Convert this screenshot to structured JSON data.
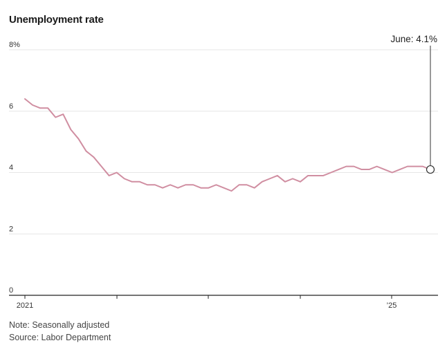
{
  "chart_data": {
    "type": "line",
    "title": "Unemployment rate",
    "ylim": [
      0,
      8
    ],
    "y_ticks": [
      0,
      2,
      4,
      6,
      8
    ],
    "y_tick_labels": [
      "0",
      "2",
      "4",
      "6",
      "8%"
    ],
    "x_tick_labels": [
      "2021",
      "",
      "",
      "",
      "’25"
    ],
    "grid": true,
    "series": [
      {
        "color": "#d08ea1",
        "x": [
          "2021-01",
          "2021-02",
          "2021-03",
          "2021-04",
          "2021-05",
          "2021-06",
          "2021-07",
          "2021-08",
          "2021-09",
          "2021-10",
          "2021-11",
          "2021-12",
          "2022-01",
          "2022-02",
          "2022-03",
          "2022-04",
          "2022-05",
          "2022-06",
          "2022-07",
          "2022-08",
          "2022-09",
          "2022-10",
          "2022-11",
          "2022-12",
          "2023-01",
          "2023-02",
          "2023-03",
          "2023-04",
          "2023-05",
          "2023-06",
          "2023-07",
          "2023-08",
          "2023-09",
          "2023-10",
          "2023-11",
          "2023-12",
          "2024-01",
          "2024-02",
          "2024-03",
          "2024-04",
          "2024-05",
          "2024-06",
          "2024-07",
          "2024-08",
          "2024-09",
          "2024-10",
          "2024-11",
          "2024-12",
          "2025-01",
          "2025-02",
          "2025-03",
          "2025-04",
          "2025-05",
          "2025-06"
        ],
        "values": [
          6.4,
          6.2,
          6.1,
          6.1,
          5.8,
          5.9,
          5.4,
          5.1,
          4.7,
          4.5,
          4.2,
          3.9,
          4.0,
          3.8,
          3.7,
          3.7,
          3.6,
          3.6,
          3.5,
          3.6,
          3.5,
          3.6,
          3.6,
          3.5,
          3.5,
          3.6,
          3.5,
          3.4,
          3.6,
          3.6,
          3.5,
          3.7,
          3.8,
          3.9,
          3.7,
          3.8,
          3.7,
          3.9,
          3.9,
          3.9,
          4.0,
          4.1,
          4.2,
          4.2,
          4.1,
          4.1,
          4.2,
          4.1,
          4.0,
          4.1,
          4.2,
          4.2,
          4.2,
          4.1
        ]
      }
    ],
    "annotation": {
      "label": "June: 4.1%"
    }
  },
  "notes": {
    "note": "Note: Seasonally adjusted",
    "source": "Source: Labor Department"
  },
  "colors": {
    "line": "#d08ea1",
    "grid": "#e6e6e6",
    "axis": "#222222"
  }
}
